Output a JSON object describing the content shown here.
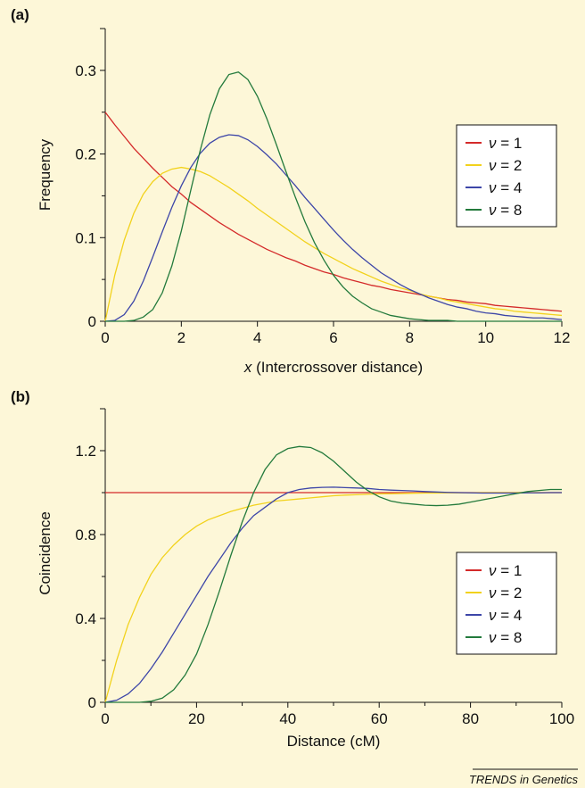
{
  "figure": {
    "credit": "TRENDS in Genetics",
    "legend_variable": "ν",
    "legend_equals": " = "
  },
  "chart_data": [
    {
      "type": "line",
      "panel_label": "(a)",
      "xlabel_italic": "x",
      "xlabel_rest": " (Intercrossover distance)",
      "ylabel": "Frequency",
      "xlim": [
        0,
        12
      ],
      "ylim": [
        0,
        0.35
      ],
      "x_ticks": [
        0,
        2,
        4,
        6,
        8,
        10,
        12
      ],
      "x_tick_labels": [
        "0",
        "2",
        "4",
        "6",
        "8",
        "10",
        "12"
      ],
      "y_ticks": [
        0,
        0.1,
        0.2,
        0.3
      ],
      "y_tick_labels": [
        "0",
        "0.1",
        "0.2",
        "0.3"
      ],
      "y_minor_ticks": [
        0.05,
        0.15,
        0.25
      ],
      "grid": false,
      "legend_position": "right",
      "x": [
        0,
        0.25,
        0.5,
        0.75,
        1,
        1.25,
        1.5,
        1.75,
        2,
        2.25,
        2.5,
        2.75,
        3,
        3.25,
        3.5,
        3.75,
        4,
        4.25,
        4.5,
        4.75,
        5,
        5.25,
        5.5,
        5.75,
        6,
        6.25,
        6.5,
        6.75,
        7,
        7.25,
        7.5,
        7.75,
        8,
        8.25,
        8.5,
        8.75,
        9,
        9.25,
        9.5,
        9.75,
        10,
        10.25,
        10.5,
        10.75,
        11,
        11.25,
        11.5,
        11.75,
        12
      ],
      "series": [
        {
          "name": "1",
          "color": "#d42a2a",
          "values": [
            0.25,
            0.235,
            0.221,
            0.207,
            0.195,
            0.183,
            0.172,
            0.161,
            0.152,
            0.142,
            0.134,
            0.126,
            0.118,
            0.111,
            0.104,
            0.098,
            0.092,
            0.086,
            0.081,
            0.076,
            0.072,
            0.067,
            0.063,
            0.059,
            0.056,
            0.052,
            0.049,
            0.046,
            0.043,
            0.041,
            0.038,
            0.036,
            0.034,
            0.032,
            0.03,
            0.028,
            0.026,
            0.025,
            0.023,
            0.022,
            0.021,
            0.019,
            0.018,
            0.017,
            0.016,
            0.015,
            0.014,
            0.013,
            0.012
          ]
        },
        {
          "name": "2",
          "color": "#f2d21c",
          "values": [
            0,
            0.055,
            0.097,
            0.129,
            0.152,
            0.167,
            0.177,
            0.182,
            0.184,
            0.182,
            0.179,
            0.174,
            0.167,
            0.16,
            0.152,
            0.144,
            0.135,
            0.127,
            0.119,
            0.111,
            0.103,
            0.095,
            0.088,
            0.081,
            0.075,
            0.069,
            0.063,
            0.058,
            0.053,
            0.048,
            0.044,
            0.04,
            0.037,
            0.033,
            0.03,
            0.028,
            0.025,
            0.023,
            0.021,
            0.019,
            0.017,
            0.015,
            0.014,
            0.012,
            0.011,
            0.01,
            0.009,
            0.008,
            0.007
          ]
        },
        {
          "name": "4",
          "color": "#3d46a8",
          "values": [
            0,
            0.001,
            0.008,
            0.024,
            0.048,
            0.077,
            0.107,
            0.136,
            0.162,
            0.184,
            0.201,
            0.213,
            0.22,
            0.223,
            0.222,
            0.217,
            0.209,
            0.199,
            0.188,
            0.175,
            0.162,
            0.148,
            0.135,
            0.122,
            0.109,
            0.097,
            0.086,
            0.076,
            0.067,
            0.058,
            0.051,
            0.044,
            0.038,
            0.033,
            0.028,
            0.024,
            0.02,
            0.017,
            0.015,
            0.012,
            0.01,
            0.009,
            0.007,
            0.006,
            0.005,
            0.004,
            0.004,
            0.003,
            0.002
          ]
        },
        {
          "name": "8",
          "color": "#237a3c",
          "values": [
            0,
            0,
            0,
            0.001,
            0.005,
            0.014,
            0.034,
            0.066,
            0.108,
            0.157,
            0.205,
            0.247,
            0.278,
            0.295,
            0.298,
            0.289,
            0.269,
            0.242,
            0.211,
            0.179,
            0.148,
            0.119,
            0.094,
            0.073,
            0.055,
            0.041,
            0.03,
            0.022,
            0.015,
            0.011,
            0.007,
            0.005,
            0.003,
            0.002,
            0.001,
            0.001,
            0.001,
            0,
            0,
            0,
            0,
            0,
            0,
            0,
            0,
            0,
            0,
            0,
            0
          ]
        }
      ]
    },
    {
      "type": "line",
      "panel_label": "(b)",
      "xlabel_italic": "",
      "xlabel_rest": "Distance (cM)",
      "ylabel": "Coincidence",
      "xlim": [
        0,
        100
      ],
      "ylim": [
        0,
        1.4
      ],
      "x_ticks": [
        0,
        20,
        40,
        60,
        80,
        100
      ],
      "x_tick_labels": [
        "0",
        "20",
        "40",
        "60",
        "80",
        "100"
      ],
      "x_minor_ticks": [
        10,
        30,
        50,
        70,
        90
      ],
      "y_ticks": [
        0,
        0.4,
        0.8,
        1.2
      ],
      "y_tick_labels": [
        "0",
        "0.4",
        "0.8",
        "1.2"
      ],
      "y_minor_ticks": [
        0.2,
        0.6,
        1.0
      ],
      "grid": false,
      "legend_position": "bottom-right",
      "x": [
        0,
        2.5,
        5,
        7.5,
        10,
        12.5,
        15,
        17.5,
        20,
        22.5,
        25,
        27.5,
        30,
        32.5,
        35,
        37.5,
        40,
        42.5,
        45,
        47.5,
        50,
        52.5,
        55,
        57.5,
        60,
        62.5,
        65,
        67.5,
        70,
        72.5,
        75,
        77.5,
        80,
        82.5,
        85,
        87.5,
        90,
        92.5,
        95,
        97.5,
        100
      ],
      "series": [
        {
          "name": "1",
          "color": "#d42a2a",
          "values": [
            1,
            1,
            1,
            1,
            1,
            1,
            1,
            1,
            1,
            1,
            1,
            1,
            1,
            1,
            1,
            1,
            1,
            1,
            1,
            1,
            1,
            1,
            1,
            1,
            1,
            1,
            1,
            1,
            1,
            1,
            1,
            1,
            1,
            1,
            1,
            1,
            1,
            1,
            1,
            1,
            1
          ]
        },
        {
          "name": "2",
          "color": "#f2d21c",
          "values": [
            0,
            0.2,
            0.37,
            0.5,
            0.61,
            0.69,
            0.75,
            0.8,
            0.84,
            0.87,
            0.89,
            0.91,
            0.925,
            0.94,
            0.95,
            0.96,
            0.965,
            0.97,
            0.975,
            0.98,
            0.985,
            0.988,
            0.99,
            0.992,
            0.994,
            0.995,
            0.996,
            0.997,
            0.998,
            0.998,
            0.999,
            0.999,
            0.999,
            1,
            1,
            1,
            1,
            1,
            1,
            1,
            1
          ]
        },
        {
          "name": "4",
          "color": "#3d46a8",
          "values": [
            0,
            0.01,
            0.04,
            0.09,
            0.16,
            0.24,
            0.33,
            0.42,
            0.51,
            0.6,
            0.68,
            0.76,
            0.83,
            0.89,
            0.93,
            0.97,
            1,
            1.015,
            1.022,
            1.025,
            1.026,
            1.024,
            1.022,
            1.02,
            1.015,
            1.012,
            1.01,
            1.008,
            1.005,
            1.003,
            1.001,
            1,
            0.999,
            0.998,
            0.998,
            0.998,
            0.998,
            0.999,
            0.999,
            1,
            1
          ]
        },
        {
          "name": "8",
          "color": "#237a3c",
          "values": [
            0,
            0,
            0,
            0,
            0.005,
            0.02,
            0.06,
            0.13,
            0.23,
            0.37,
            0.53,
            0.7,
            0.86,
            1,
            1.11,
            1.18,
            1.21,
            1.22,
            1.215,
            1.19,
            1.15,
            1.1,
            1.05,
            1.01,
            0.98,
            0.96,
            0.95,
            0.945,
            0.94,
            0.938,
            0.94,
            0.945,
            0.955,
            0.965,
            0.975,
            0.985,
            0.995,
            1.005,
            1.01,
            1.015,
            1.015
          ]
        }
      ]
    }
  ]
}
